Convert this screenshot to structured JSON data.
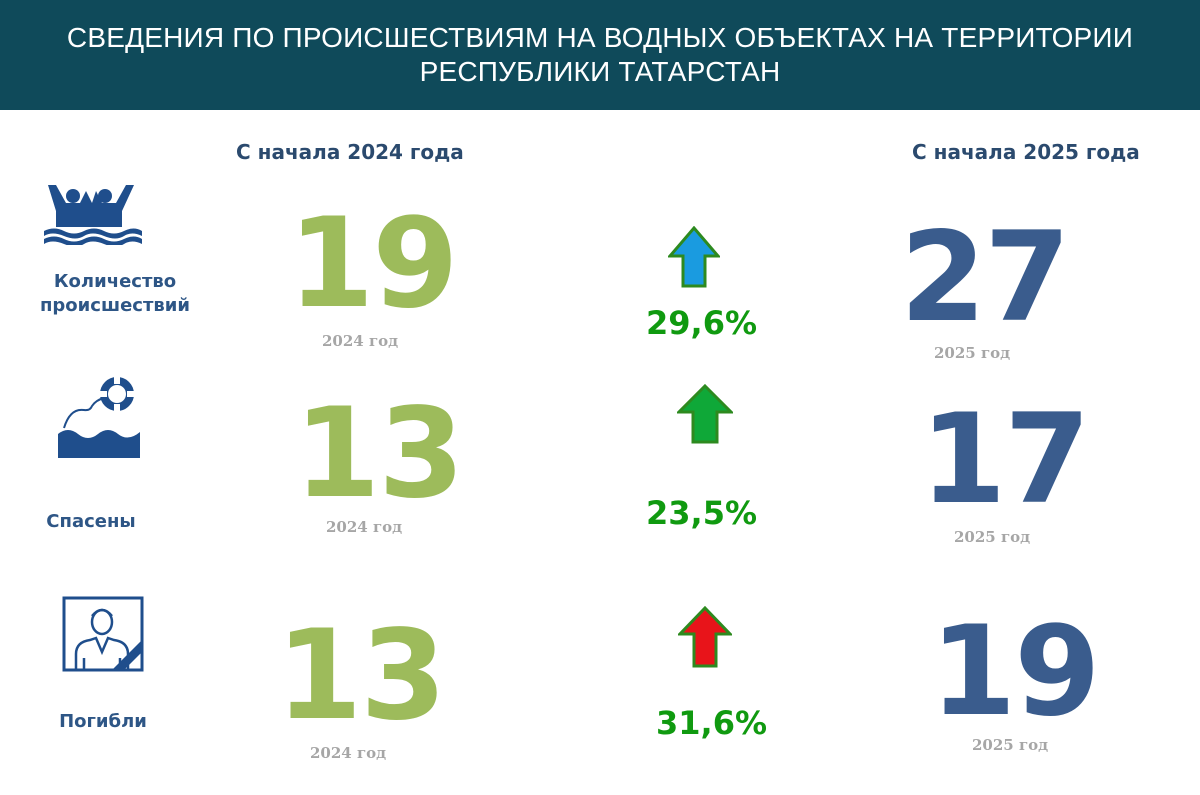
{
  "header": {
    "title_line1": "СВЕДЕНИЯ ПО ПРОИСШЕСТВИЯМ НА ВОДНЫХ ОБЪЕКТАХ НА ТЕРРИТОРИИ",
    "title_line2": "РЕСПУБЛИКИ ТАТАРСТАН"
  },
  "columns": {
    "left_title": "С начала 2024 года",
    "right_title": "С начала 2025 года"
  },
  "rows": [
    {
      "label_line1": "Количество",
      "label_line2": "происшествий",
      "icon": "swimmers-icon",
      "value_2024": "19",
      "year_2024": "2024 год",
      "change": "29,6%",
      "arrow_color": "#1a9be0",
      "value_2025": "27",
      "year_2025": "2025 год"
    },
    {
      "label_line1": "Спасены",
      "label_line2": "",
      "icon": "lifebuoy-rescue-icon",
      "value_2024": "13",
      "year_2024": "2024 год",
      "change": "23,5%",
      "arrow_color": "#0fa838",
      "value_2025": "17",
      "year_2025": "2025 год"
    },
    {
      "label_line1": "Погибли",
      "label_line2": "",
      "icon": "mourning-portrait-icon",
      "value_2024": "13",
      "year_2024": "2024 год",
      "change": "31,6%",
      "arrow_color": "#e8141a",
      "value_2025": "19",
      "year_2025": "2025 год"
    }
  ],
  "colors": {
    "header_bg": "#0f4a5a",
    "value_2024": "#9dbb5b",
    "value_2025": "#3a5c8d",
    "percent": "#109a10",
    "label": "#2e5686"
  }
}
